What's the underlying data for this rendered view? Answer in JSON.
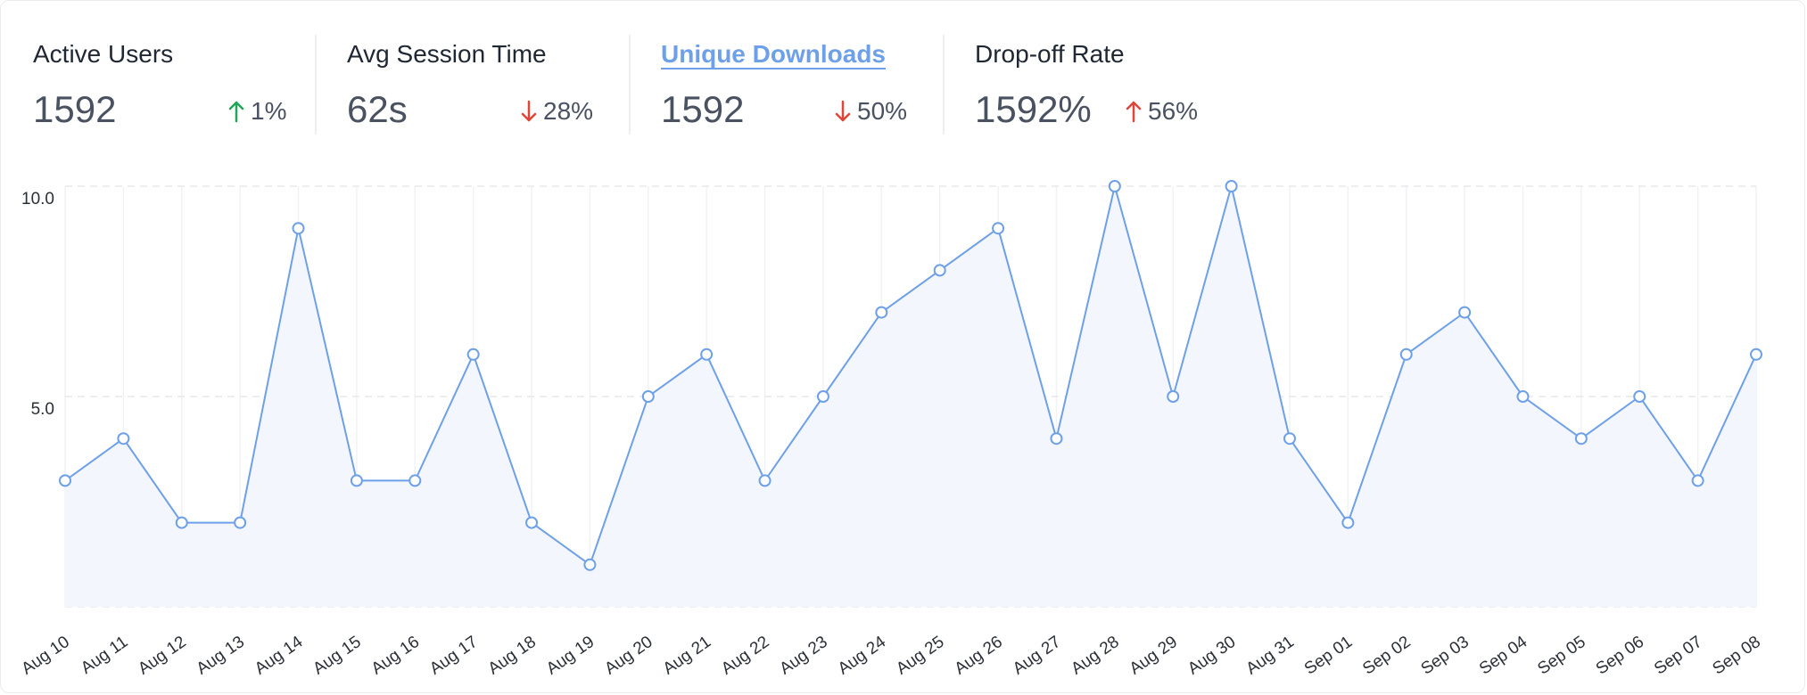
{
  "metrics": [
    {
      "label": "Active Users",
      "value": "1592",
      "delta": "1%",
      "direction": "up",
      "color": "#22a55a",
      "active": false
    },
    {
      "label": "Avg Session Time",
      "value": "62s",
      "delta": "28%",
      "direction": "down",
      "color": "#e0453a",
      "active": false
    },
    {
      "label": "Unique Downloads",
      "value": "1592",
      "delta": "50%",
      "direction": "down",
      "color": "#e0453a",
      "active": true
    },
    {
      "label": "Drop-off Rate",
      "value": "1592%",
      "delta": "56%",
      "direction": "up",
      "color": "#e0453a",
      "active": false
    }
  ],
  "colors": {
    "line": "#6ea0ea",
    "fill": "#f3f6fc",
    "grid": "#e6e8ec",
    "text": "#2b2f36"
  },
  "chart_data": {
    "type": "area",
    "categories": [
      "Aug 10",
      "Aug 11",
      "Aug 12",
      "Aug 13",
      "Aug 14",
      "Aug 15",
      "Aug 16",
      "Aug 17",
      "Aug 18",
      "Aug 19",
      "Aug 20",
      "Aug 21",
      "Aug 22",
      "Aug 23",
      "Aug 24",
      "Aug 25",
      "Aug 26",
      "Aug 27",
      "Aug 28",
      "Aug 29",
      "Aug 30",
      "Aug 31",
      "Sep 01",
      "Sep 02",
      "Sep 03",
      "Sep 04",
      "Sep 05",
      "Sep 06",
      "Sep 07",
      "Sep 08"
    ],
    "series": [
      {
        "values": [
          3,
          4,
          2,
          2,
          9,
          3,
          3,
          6,
          2,
          1,
          5,
          6,
          3,
          5,
          7,
          8,
          9,
          4,
          10,
          5,
          10,
          4,
          2,
          6,
          7,
          5,
          4,
          5,
          3,
          6
        ]
      }
    ],
    "yticks": [
      {
        "value": 10,
        "label": "10.0"
      },
      {
        "value": 5,
        "label": "5.0"
      }
    ],
    "ylim": [
      0,
      10
    ],
    "xlabel": "",
    "ylabel": "",
    "grid": true
  }
}
